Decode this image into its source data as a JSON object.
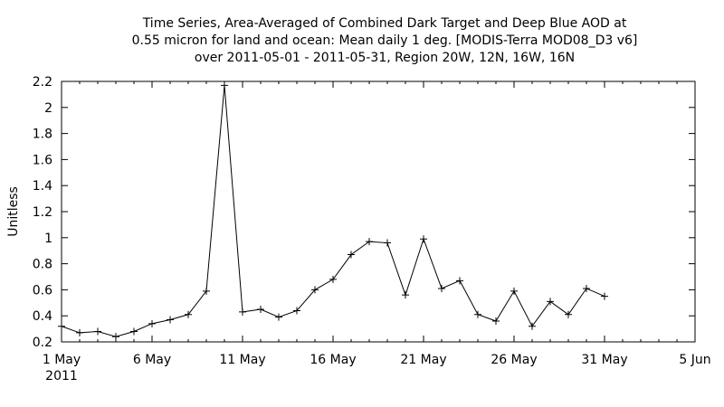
{
  "chart_data": {
    "type": "line",
    "title_lines": [
      "Time Series, Area-Averaged of Combined Dark Target and Deep Blue AOD at",
      "0.55 micron for land and ocean: Mean daily 1 deg. [MODIS-Terra MOD08_D3 v6]",
      "over 2011-05-01 - 2011-05-31, Region 20W, 12N, 16W, 16N"
    ],
    "xlabel": "",
    "ylabel": "Unitless",
    "xlim": [
      "2011-05-01",
      "2011-06-05"
    ],
    "ylim": [
      0.2,
      2.2
    ],
    "grid": false,
    "x_ticks": [
      {
        "date": "2011-05-01",
        "label": "1 May",
        "sublabel": "2011"
      },
      {
        "date": "2011-05-06",
        "label": "6 May"
      },
      {
        "date": "2011-05-11",
        "label": "11 May"
      },
      {
        "date": "2011-05-16",
        "label": "16 May"
      },
      {
        "date": "2011-05-21",
        "label": "21 May"
      },
      {
        "date": "2011-05-26",
        "label": "26 May"
      },
      {
        "date": "2011-05-31",
        "label": "31 May"
      },
      {
        "date": "2011-06-05",
        "label": "5 Jun"
      }
    ],
    "y_ticks": [
      {
        "value": 0.2,
        "label": "0.2"
      },
      {
        "value": 0.4,
        "label": "0.4"
      },
      {
        "value": 0.6,
        "label": "0.6"
      },
      {
        "value": 0.8,
        "label": "0.8"
      },
      {
        "value": 1.0,
        "label": "1"
      },
      {
        "value": 1.2,
        "label": "1.2"
      },
      {
        "value": 1.4,
        "label": "1.4"
      },
      {
        "value": 1.6,
        "label": "1.6"
      },
      {
        "value": 1.8,
        "label": "1.8"
      },
      {
        "value": 2.0,
        "label": "2"
      },
      {
        "value": 2.2,
        "label": "2.2"
      }
    ],
    "series": [
      {
        "marker": "plus",
        "color": "#000000",
        "x": [
          "2011-05-01",
          "2011-05-02",
          "2011-05-03",
          "2011-05-04",
          "2011-05-05",
          "2011-05-06",
          "2011-05-07",
          "2011-05-08",
          "2011-05-09",
          "2011-05-10",
          "2011-05-11",
          "2011-05-12",
          "2011-05-13",
          "2011-05-14",
          "2011-05-15",
          "2011-05-16",
          "2011-05-17",
          "2011-05-18",
          "2011-05-19",
          "2011-05-20",
          "2011-05-21",
          "2011-05-22",
          "2011-05-23",
          "2011-05-24",
          "2011-05-25",
          "2011-05-26",
          "2011-05-27",
          "2011-05-28",
          "2011-05-29",
          "2011-05-30",
          "2011-05-31"
        ],
        "values": [
          0.32,
          0.27,
          0.28,
          0.24,
          0.28,
          0.34,
          0.37,
          0.41,
          0.59,
          2.17,
          0.43,
          0.45,
          0.39,
          0.44,
          0.6,
          0.68,
          0.87,
          0.97,
          0.96,
          0.56,
          0.99,
          0.61,
          0.67,
          0.41,
          0.36,
          0.59,
          0.32,
          0.51,
          0.41,
          0.61,
          0.55
        ]
      }
    ]
  }
}
